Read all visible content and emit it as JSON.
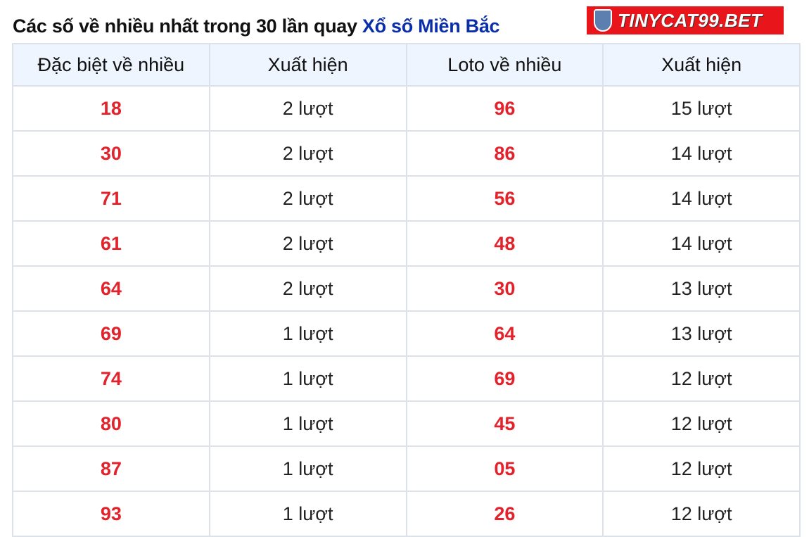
{
  "title": {
    "text": "Các số về nhiều nhất trong 30 lần quay",
    "link": "Xổ số Miền Bắc"
  },
  "logo": {
    "text": "TINYCAT99.BET",
    "color": "#e8161b"
  },
  "colors": {
    "number": "#e3222b",
    "link": "#0b2fa8",
    "header_bg": "#eef5fe"
  },
  "table": {
    "headers": [
      "Đặc biệt về nhiều",
      "Xuất hiện",
      "Loto về nhiều",
      "Xuất hiện"
    ],
    "rows": [
      [
        "18",
        "2 lượt",
        "96",
        "15 lượt"
      ],
      [
        "30",
        "2 lượt",
        "86",
        "14 lượt"
      ],
      [
        "71",
        "2 lượt",
        "56",
        "14 lượt"
      ],
      [
        "61",
        "2 lượt",
        "48",
        "14 lượt"
      ],
      [
        "64",
        "2 lượt",
        "30",
        "13 lượt"
      ],
      [
        "69",
        "1 lượt",
        "64",
        "13 lượt"
      ],
      [
        "74",
        "1 lượt",
        "69",
        "12 lượt"
      ],
      [
        "80",
        "1 lượt",
        "45",
        "12 lượt"
      ],
      [
        "87",
        "1 lượt",
        "05",
        "12 lượt"
      ],
      [
        "93",
        "1 lượt",
        "26",
        "12 lượt"
      ]
    ]
  }
}
